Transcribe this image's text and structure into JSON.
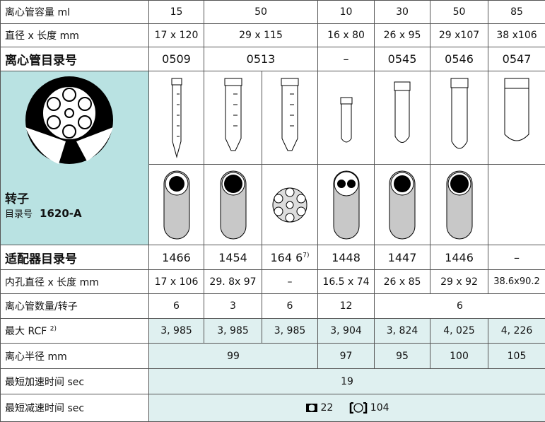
{
  "top_rows": [
    {
      "label": "离心管容量 ml",
      "cells": [
        "15",
        "50",
        "10",
        "30",
        "50",
        "85"
      ]
    },
    {
      "label": "直径 x 长度 mm",
      "cells": [
        "17 x 120",
        "29 x 115",
        "16 x 80",
        "26 x 95",
        "29 x107",
        "38 x106"
      ]
    },
    {
      "label": "离心管目录号",
      "cells": [
        "0509",
        "0513",
        "–",
        "0545",
        "0546",
        "0547"
      ]
    }
  ],
  "rotor": {
    "title": "转子",
    "catalog_label": "目录号",
    "catalog": "1620-A"
  },
  "bottom_rows": [
    {
      "label": "适配器目录号",
      "cells": [
        {
          "text": "1466"
        },
        {
          "text": "1454"
        },
        {
          "text": "164 6",
          "note": "7)"
        },
        {
          "text": "1448"
        },
        {
          "text": "1447"
        },
        {
          "text": "1446"
        },
        {
          "text": "–"
        }
      ]
    },
    {
      "label": "内孔直径 x 长度 mm",
      "cells": [
        {
          "text": "17 x 106"
        },
        {
          "text": "29. 8x 97"
        },
        {
          "text": "–"
        },
        {
          "text": "16.5 x 74"
        },
        {
          "text": "26 x 85"
        },
        {
          "text": "29 x 92"
        },
        {
          "text": "38.6x90.2"
        }
      ]
    },
    {
      "label": "离心管数量/转子",
      "cells": [
        {
          "text": "6"
        },
        {
          "text": "3"
        },
        {
          "text": "6"
        },
        {
          "text": "12"
        },
        {
          "text": "6"
        }
      ]
    },
    {
      "label": "最大 RCF",
      "note": "2)",
      "cells": [
        {
          "text": "3, 985"
        },
        {
          "text": "3, 985"
        },
        {
          "text": "3, 985"
        },
        {
          "text": "3, 904"
        },
        {
          "text": "3, 824"
        },
        {
          "text": "4, 025"
        },
        {
          "text": "4, 226"
        }
      ]
    },
    {
      "label": "离心半径 mm",
      "cells": [
        {
          "text": "99"
        },
        {
          "text": "97"
        },
        {
          "text": "95"
        },
        {
          "text": "100"
        },
        {
          "text": "105"
        }
      ]
    },
    {
      "label": "最短加速时间 sec",
      "cells": [
        {
          "text": "19"
        }
      ]
    },
    {
      "label": "最短减速时间 sec",
      "cells": [
        {
          "text": "22"
        },
        {
          "text": "104"
        }
      ]
    }
  ]
}
